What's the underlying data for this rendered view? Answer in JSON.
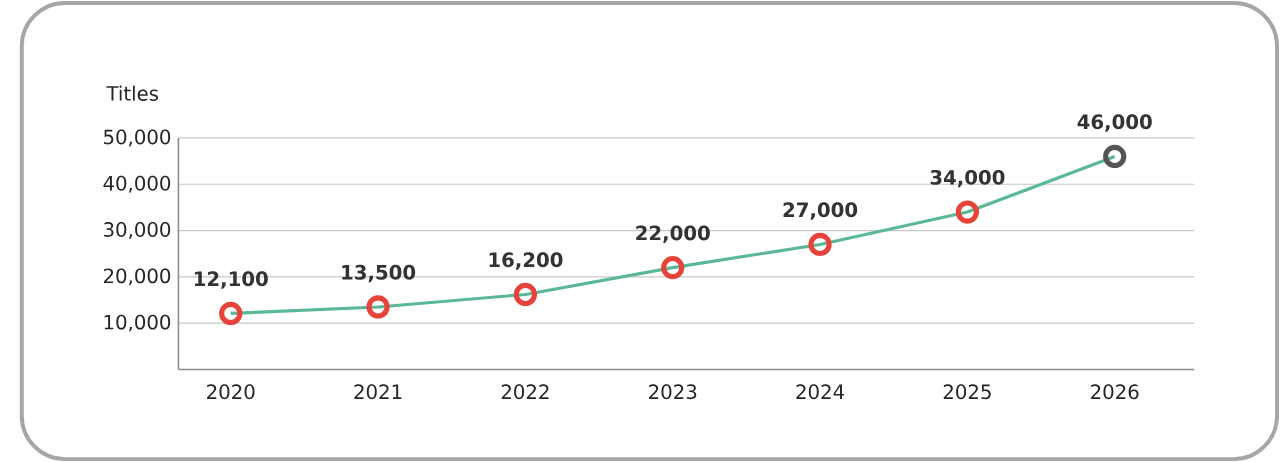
{
  "chart_data": {
    "type": "line",
    "ylabel": "Titles",
    "categories": [
      "2020",
      "2021",
      "2022",
      "2023",
      "2024",
      "2025",
      "2026"
    ],
    "series": [
      {
        "color": "#5bb896",
        "colors": [
          "#e8433a",
          "#e8433a",
          "#e8433a",
          "#e8433a",
          "#e8433a",
          "#e8433a",
          "#555555"
        ],
        "values": [
          12100,
          13500,
          16200,
          22000,
          27000,
          34000,
          46000
        ],
        "value_labels": [
          "12,100",
          "13,500",
          "16,200",
          "22,000",
          "27,000",
          "34,000",
          "46,000"
        ]
      }
    ],
    "ylim": [
      0,
      50000
    ],
    "yticks": [
      {
        "value": 10000,
        "label": "10,000"
      },
      {
        "value": 20000,
        "label": "20,000"
      },
      {
        "value": 30000,
        "label": "30,000"
      },
      {
        "value": 40000,
        "label": "40,000"
      },
      {
        "value": 50000,
        "label": "50,000"
      }
    ],
    "grid": "y",
    "marker": "circle",
    "line_style": "solid"
  }
}
